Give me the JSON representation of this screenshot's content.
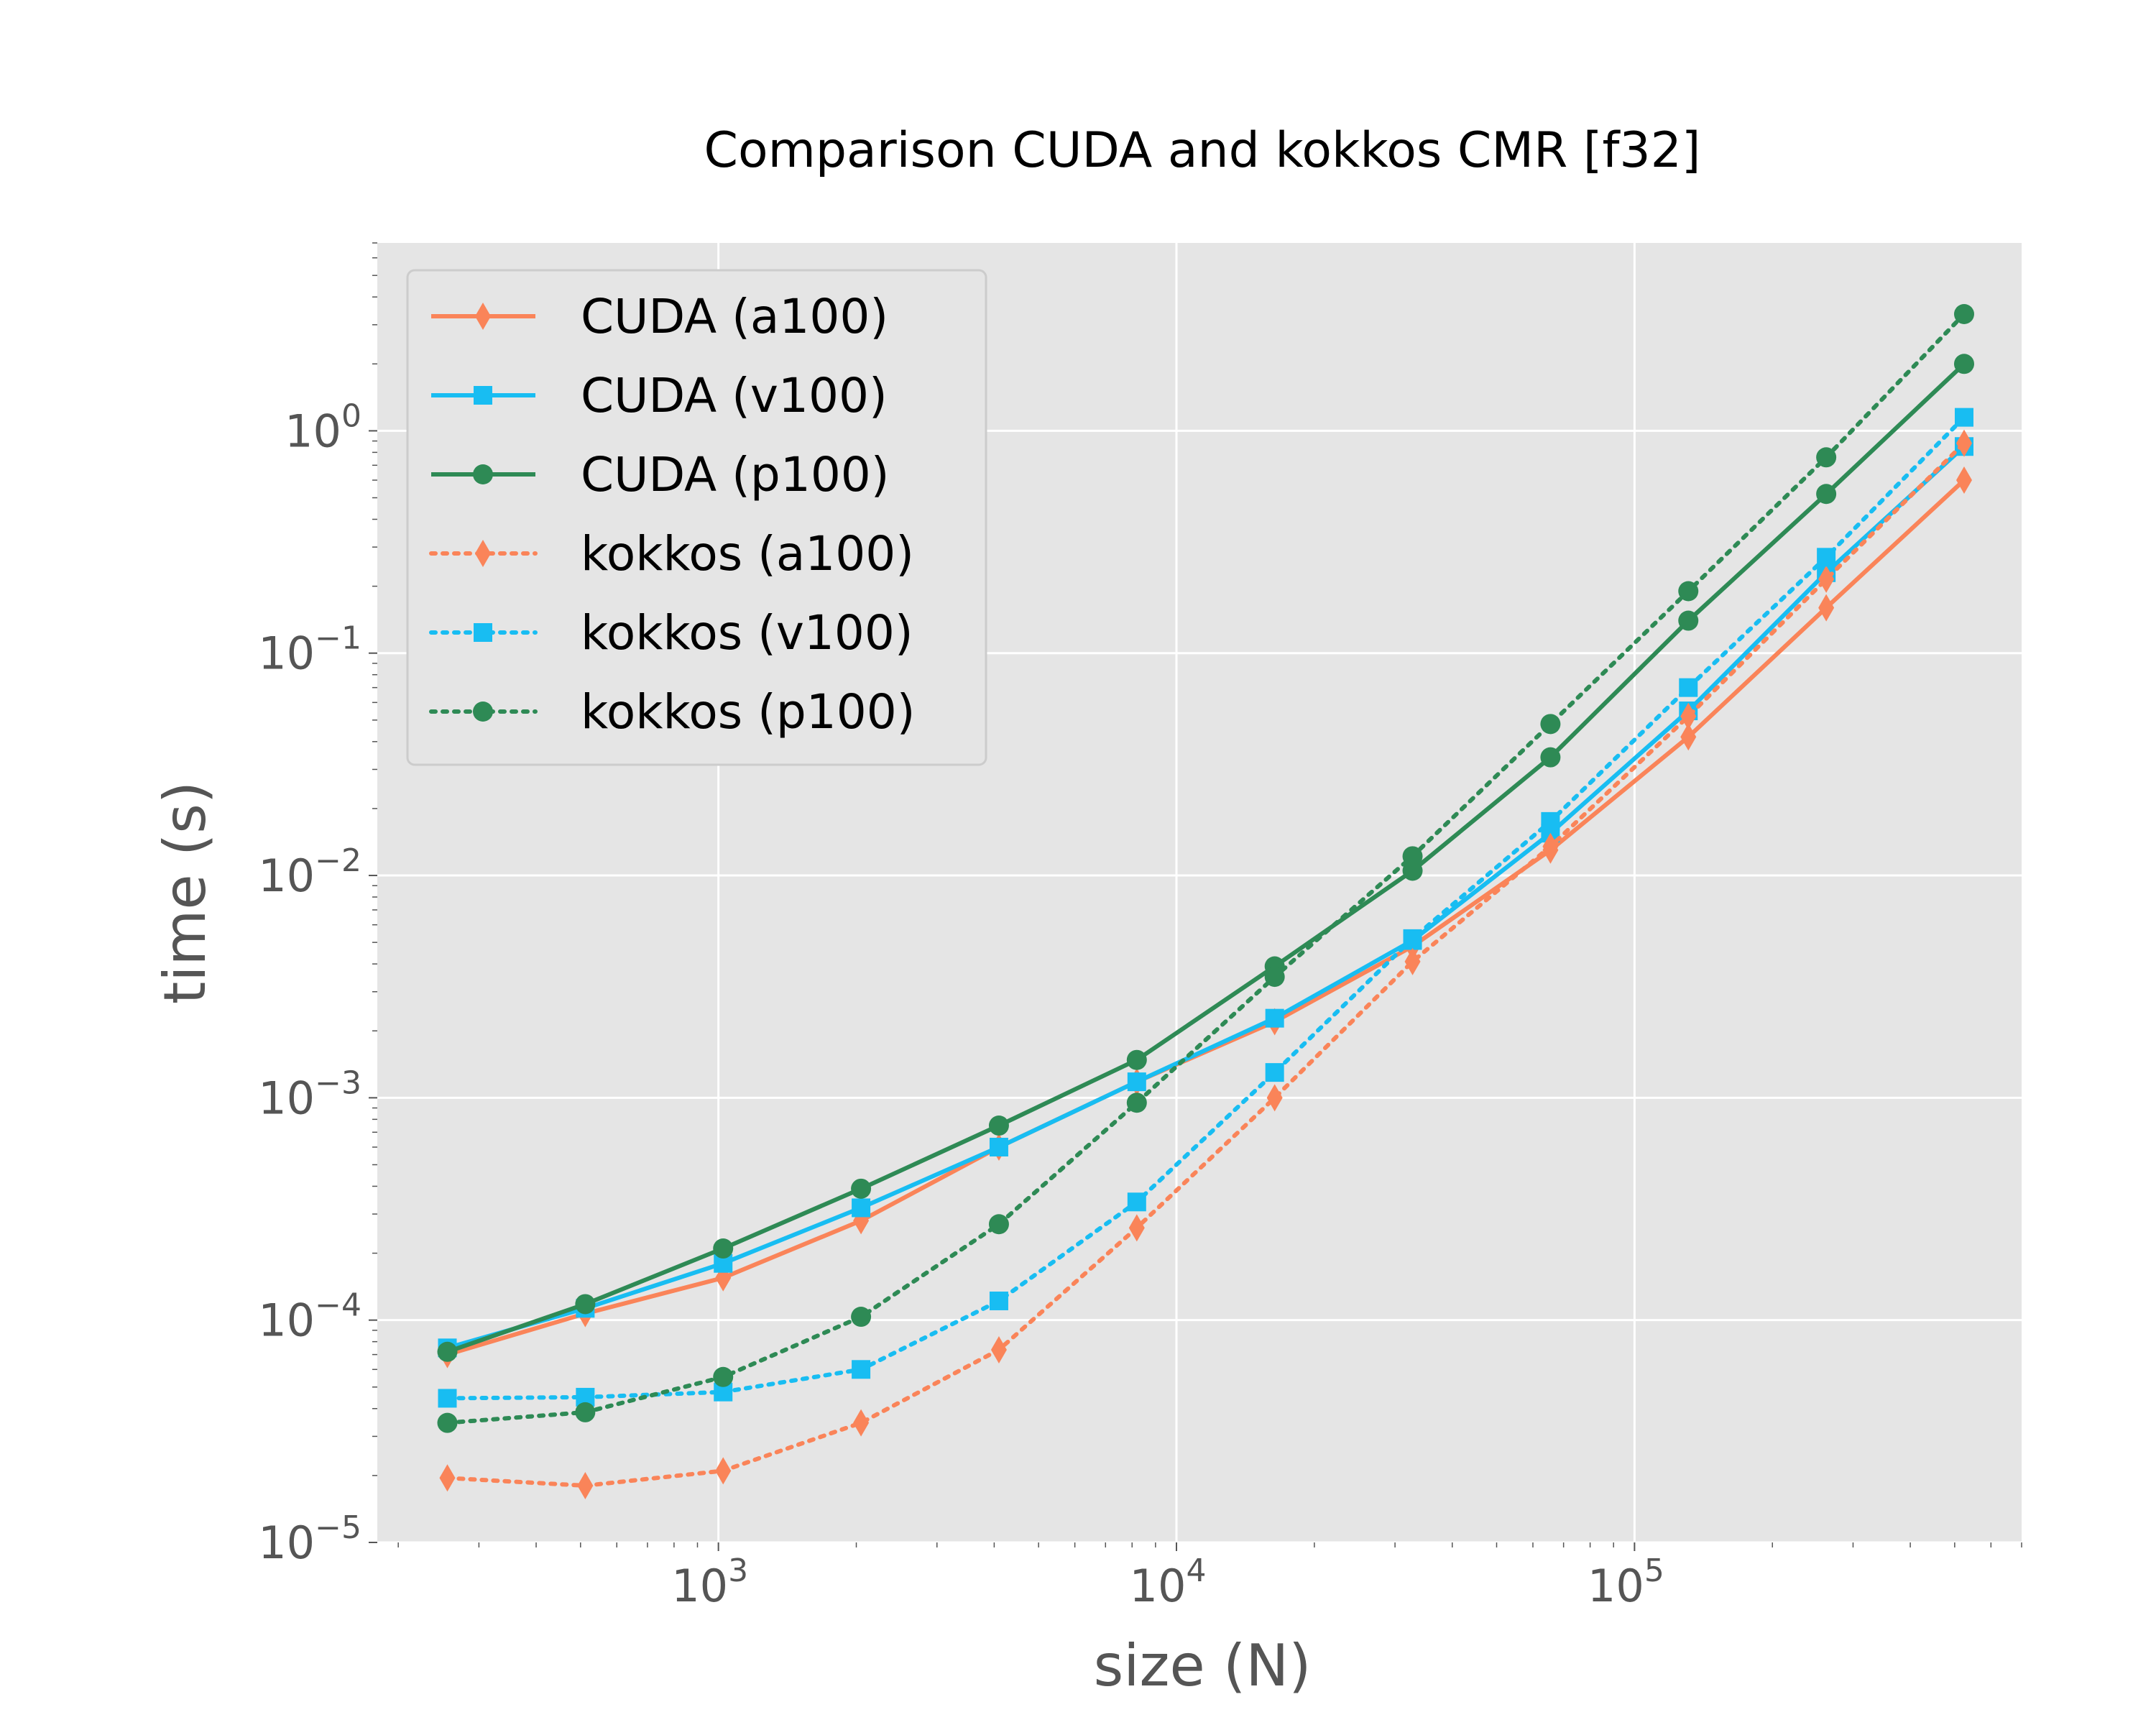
{
  "chart_data": {
    "type": "line",
    "title": "Comparison CUDA and kokkos CMR [f32]",
    "xlabel": "size (N)",
    "ylabel": "time (s)",
    "xscale": "log",
    "yscale": "log",
    "xlim": [
      180,
      700000
    ],
    "ylim": [
      1e-05,
      7
    ],
    "x_ticks": [
      {
        "base": "10",
        "exp": "3",
        "value": 1000
      },
      {
        "base": "10",
        "exp": "4",
        "value": 10000
      },
      {
        "base": "10",
        "exp": "5",
        "value": 100000
      }
    ],
    "y_ticks": [
      {
        "base": "10",
        "exp": "0",
        "value": 1
      },
      {
        "base": "10",
        "exp": "−1",
        "value": 0.1
      },
      {
        "base": "10",
        "exp": "−2",
        "value": 0.01
      },
      {
        "base": "10",
        "exp": "−3",
        "value": 0.001
      },
      {
        "base": "10",
        "exp": "−4",
        "value": 0.0001
      },
      {
        "base": "10",
        "exp": "−5",
        "value": 1e-05
      }
    ],
    "grid": true,
    "legend_position": "top-left",
    "x": [
      256,
      512,
      1024,
      2048,
      4096,
      8192,
      16384,
      32768,
      65536,
      131072,
      262144,
      524288
    ],
    "series": [
      {
        "name": "CUDA (a100)",
        "color": "#fa8459",
        "linestyle": "solid",
        "marker": "diamond",
        "values": [
          7e-05,
          0.000107,
          0.000155,
          0.00028,
          0.0006,
          0.00118,
          0.0022,
          0.0048,
          0.013,
          0.042,
          0.16,
          0.6
        ]
      },
      {
        "name": "CUDA (v100)",
        "color": "#18bdf2",
        "linestyle": "solid",
        "marker": "square",
        "values": [
          7.5e-05,
          0.000113,
          0.00018,
          0.00032,
          0.0006,
          0.00118,
          0.00228,
          0.0051,
          0.0155,
          0.055,
          0.23,
          0.85
        ]
      },
      {
        "name": "CUDA (p100)",
        "color": "#2e8a55",
        "linestyle": "solid",
        "marker": "circle",
        "values": [
          7.2e-05,
          0.000118,
          0.00021,
          0.00039,
          0.00075,
          0.00148,
          0.0039,
          0.0105,
          0.034,
          0.14,
          0.52,
          2.0
        ]
      },
      {
        "name": "kokkos (a100)",
        "color": "#fa8459",
        "linestyle": "dotted",
        "marker": "diamond",
        "values": [
          1.95e-05,
          1.8e-05,
          2.1e-05,
          3.45e-05,
          7.35e-05,
          0.00026,
          0.001,
          0.0041,
          0.0135,
          0.052,
          0.215,
          0.88
        ]
      },
      {
        "name": "kokkos (v100)",
        "color": "#18bdf2",
        "linestyle": "dotted",
        "marker": "square",
        "values": [
          4.45e-05,
          4.5e-05,
          4.75e-05,
          6e-05,
          0.000122,
          0.00034,
          0.0013,
          0.0052,
          0.0175,
          0.07,
          0.27,
          1.15
        ]
      },
      {
        "name": "kokkos (p100)",
        "color": "#2e8a55",
        "linestyle": "dotted",
        "marker": "circle",
        "values": [
          3.45e-05,
          3.85e-05,
          5.55e-05,
          0.0001035,
          0.00027,
          0.00095,
          0.0035,
          0.0122,
          0.048,
          0.19,
          0.76,
          3.35
        ]
      }
    ]
  }
}
